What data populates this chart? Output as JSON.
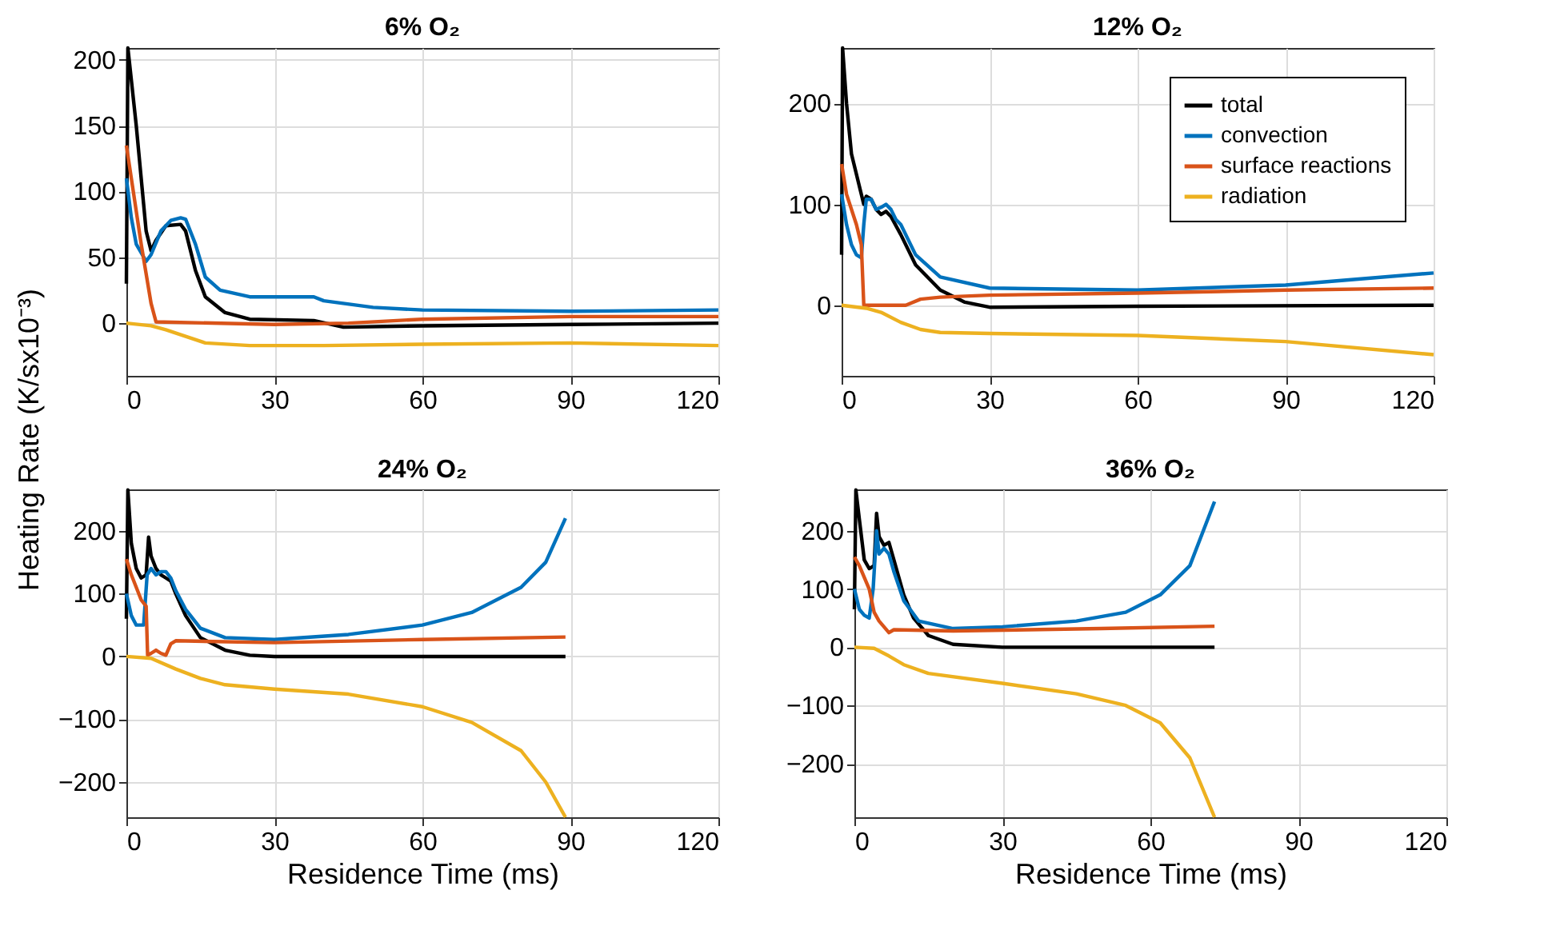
{
  "chart_data": [
    {
      "type": "line",
      "title": "6% O₂",
      "ylabel": "Heating Rate (K/sx10⁻³)",
      "xlim": [
        0,
        120
      ],
      "xticks": [
        0,
        30,
        60,
        90,
        120
      ],
      "ylim": [
        -40,
        209
      ],
      "yticks": [
        0,
        50,
        100,
        150,
        200
      ],
      "grid": true,
      "line_style": "solid",
      "tick_labels": "x,y",
      "series": [
        {
          "color": "#000000",
          "x": [
            0,
            0.3,
            2,
            4,
            5,
            6,
            8,
            11,
            12,
            14,
            16,
            20,
            25,
            38,
            44,
            60,
            90,
            120
          ],
          "values": [
            30,
            209,
            150,
            70,
            55,
            63,
            74,
            75,
            70,
            40,
            20,
            8,
            3,
            2,
            -3,
            -2,
            -1,
            0
          ]
        },
        {
          "color": "#0072bd",
          "x": [
            0,
            1,
            2,
            4,
            5,
            7,
            9,
            11,
            12,
            14,
            16,
            19,
            25,
            38,
            40,
            50,
            60,
            90,
            120
          ],
          "values": [
            110,
            80,
            60,
            47,
            52,
            70,
            78,
            80,
            79,
            60,
            35,
            25,
            20,
            20,
            17,
            12,
            10,
            9,
            10
          ]
        },
        {
          "color": "#d95319",
          "x": [
            0,
            1,
            3,
            5,
            6,
            30,
            45,
            60,
            90,
            120
          ],
          "values": [
            135,
            110,
            60,
            15,
            1,
            -1,
            0,
            3,
            5,
            5
          ]
        },
        {
          "color": "#edb120",
          "x": [
            0,
            5,
            8,
            12,
            16,
            25,
            40,
            60,
            90,
            120
          ],
          "values": [
            0,
            -2,
            -5,
            -10,
            -15,
            -17,
            -17,
            -16,
            -15,
            -17
          ]
        }
      ]
    },
    {
      "type": "line",
      "title": "12% O₂",
      "xlim": [
        0,
        120
      ],
      "xticks": [
        0,
        30,
        60,
        90,
        120
      ],
      "ylim": [
        -70,
        255
      ],
      "yticks": [
        0,
        100,
        200
      ],
      "grid": true,
      "line_style": "solid",
      "legend": "top right",
      "series": [
        {
          "name": "total",
          "color": "#000000",
          "x": [
            0,
            0.2,
            1,
            2,
            4,
            4.5,
            5,
            6,
            7,
            8,
            9,
            10,
            12,
            15,
            20,
            25,
            30,
            60,
            120
          ],
          "values": [
            50,
            255,
            200,
            150,
            110,
            100,
            108,
            105,
            95,
            90,
            93,
            88,
            70,
            40,
            15,
            3,
            -2,
            -1,
            0
          ]
        },
        {
          "name": "convection",
          "color": "#0072bd",
          "x": [
            0,
            1,
            2,
            3,
            4,
            4.5,
            5,
            6,
            7,
            8,
            9,
            10,
            11,
            12,
            15,
            20,
            30,
            60,
            90,
            120
          ],
          "values": [
            110,
            80,
            60,
            50,
            47,
            80,
            105,
            105,
            95,
            97,
            100,
            95,
            85,
            80,
            50,
            28,
            17,
            15,
            20,
            32
          ]
        },
        {
          "name": "surface reactions",
          "color": "#d95319",
          "x": [
            0,
            1,
            3,
            4,
            4.5,
            10,
            13,
            16,
            20,
            30,
            60,
            90,
            120
          ],
          "values": [
            140,
            110,
            80,
            60,
            0,
            0,
            0,
            6,
            8,
            10,
            12,
            15,
            17
          ]
        },
        {
          "name": "radiation",
          "color": "#edb120",
          "x": [
            0,
            5,
            8,
            12,
            16,
            20,
            30,
            60,
            90,
            120
          ],
          "values": [
            0,
            -3,
            -7,
            -17,
            -24,
            -27,
            -28,
            -30,
            -36,
            -49
          ]
        }
      ]
    },
    {
      "type": "line",
      "title": "24% O₂",
      "xlabel": "Residence Time (ms)",
      "xlim": [
        0,
        120
      ],
      "xticks": [
        0,
        30,
        60,
        90,
        120
      ],
      "ylim": [
        -256,
        266
      ],
      "yticks": [
        -200,
        -100,
        0,
        100,
        200
      ],
      "grid": true,
      "line_style": "solid",
      "series": [
        {
          "color": "#000000",
          "x": [
            0,
            0.3,
            1,
            2,
            3,
            4,
            4.5,
            5,
            6,
            7,
            8,
            9,
            10,
            12,
            15,
            20,
            25,
            30,
            89
          ],
          "values": [
            60,
            265,
            180,
            140,
            125,
            130,
            190,
            160,
            140,
            130,
            125,
            120,
            100,
            65,
            30,
            10,
            2,
            0,
            0
          ]
        },
        {
          "color": "#0072bd",
          "x": [
            0,
            1,
            2,
            3.5,
            4.2,
            5,
            6,
            7,
            8,
            9,
            10,
            12,
            15,
            20,
            30,
            45,
            60,
            70,
            80,
            85,
            89
          ],
          "values": [
            100,
            65,
            50,
            50,
            130,
            140,
            130,
            135,
            135,
            125,
            105,
            75,
            45,
            30,
            27,
            35,
            50,
            70,
            110,
            150,
            220
          ]
        },
        {
          "color": "#d95319",
          "x": [
            0,
            1,
            3,
            4,
            4.3,
            5,
            6,
            7,
            8,
            9,
            10,
            30,
            60,
            89
          ],
          "values": [
            155,
            130,
            90,
            80,
            2,
            5,
            10,
            5,
            2,
            20,
            25,
            22,
            27,
            31
          ]
        },
        {
          "color": "#edb120",
          "x": [
            0,
            5,
            10,
            15,
            20,
            30,
            45,
            60,
            70,
            80,
            85,
            89
          ],
          "values": [
            0,
            -3,
            -20,
            -35,
            -45,
            -52,
            -60,
            -80,
            -105,
            -150,
            -200,
            -256
          ]
        }
      ]
    },
    {
      "type": "line",
      "title": "36% O₂",
      "xlabel": "Residence Time (ms)",
      "xlim": [
        0,
        120
      ],
      "xticks": [
        0,
        30,
        60,
        90,
        120
      ],
      "ylim": [
        -292,
        271
      ],
      "yticks": [
        -200,
        -100,
        0,
        100,
        200
      ],
      "grid": true,
      "line_style": "solid",
      "series": [
        {
          "color": "#000000",
          "x": [
            0,
            0.3,
            1,
            2,
            3,
            4,
            4.5,
            5,
            6,
            7,
            8,
            10,
            12,
            15,
            20,
            30,
            73
          ],
          "values": [
            65,
            270,
            220,
            150,
            135,
            140,
            230,
            190,
            175,
            180,
            150,
            90,
            50,
            20,
            5,
            0,
            0
          ]
        },
        {
          "color": "#0072bd",
          "x": [
            0,
            1,
            2,
            3,
            3.8,
            4.5,
            5,
            6,
            7,
            8,
            10,
            13,
            20,
            30,
            45,
            55,
            62,
            68,
            73
          ],
          "values": [
            100,
            65,
            55,
            50,
            100,
            200,
            160,
            170,
            160,
            130,
            80,
            45,
            32,
            35,
            45,
            60,
            90,
            140,
            250
          ]
        },
        {
          "color": "#d95319",
          "x": [
            0,
            1,
            3,
            4,
            5,
            7,
            8,
            20,
            50,
            73
          ],
          "values": [
            155,
            140,
            100,
            60,
            45,
            25,
            30,
            28,
            32,
            36
          ]
        },
        {
          "color": "#edb120",
          "x": [
            0,
            4,
            7,
            10,
            15,
            30,
            45,
            55,
            62,
            68,
            73
          ],
          "values": [
            0,
            -2,
            -15,
            -30,
            -45,
            -62,
            -80,
            -100,
            -130,
            -190,
            -292
          ]
        }
      ]
    }
  ]
}
